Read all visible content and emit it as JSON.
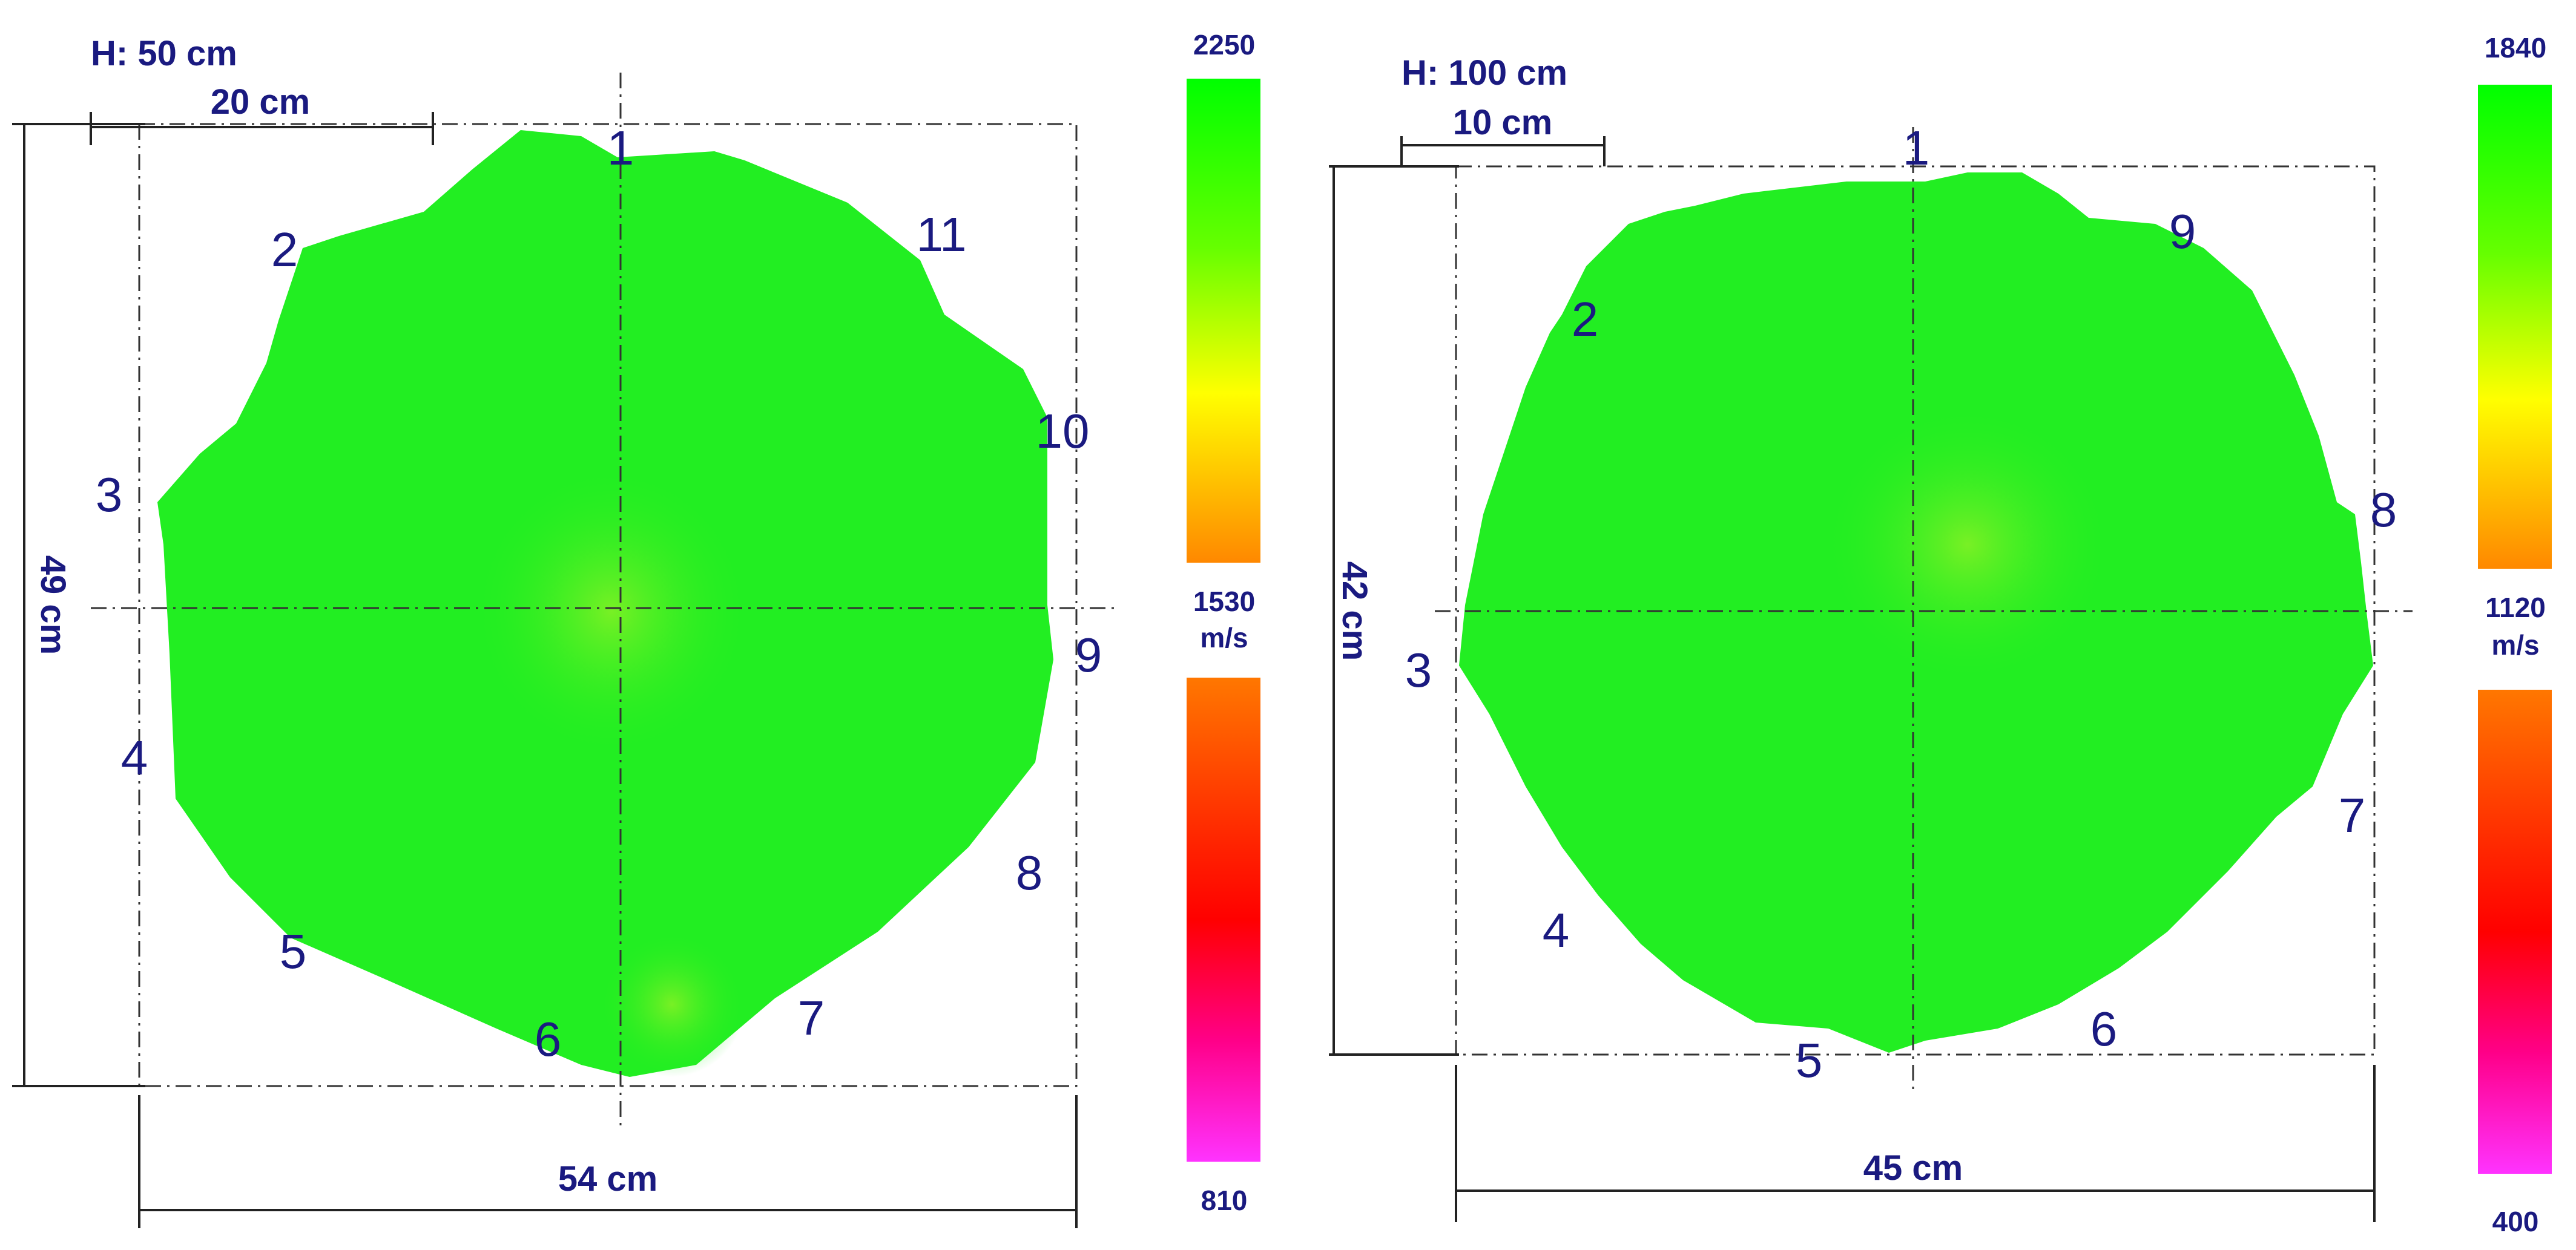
{
  "panels": [
    {
      "height_label": "H: 50 cm",
      "scale_label": "20 cm",
      "width_label": "54 cm",
      "depth_label": "49 cm",
      "points": [
        "1",
        "2",
        "3",
        "4",
        "5",
        "6",
        "7",
        "8",
        "9",
        "10",
        "11"
      ],
      "colorbar": {
        "max": "2250",
        "mid": "1530",
        "unit": "m/s",
        "min": "810"
      }
    },
    {
      "height_label": "H: 100 cm",
      "scale_label": "10 cm",
      "width_label": "45 cm",
      "depth_label": "42 cm",
      "points": [
        "1",
        "2",
        "3",
        "4",
        "5",
        "6",
        "7",
        "8",
        "9"
      ],
      "colorbar": {
        "max": "1840",
        "mid": "1120",
        "unit": "m/s",
        "min": "400"
      }
    }
  ],
  "colors": {
    "fill": "#22ee22",
    "anomaly": "#66f022",
    "label": "#1a1a80"
  }
}
